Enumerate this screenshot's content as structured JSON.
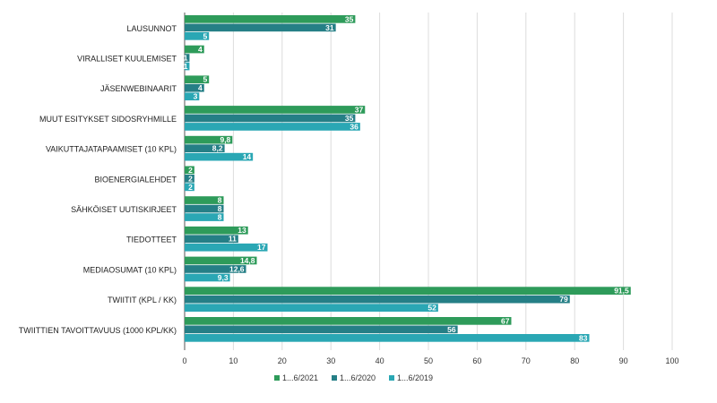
{
  "chart_data": {
    "type": "bar",
    "orientation": "horizontal",
    "title": "",
    "xlabel": "",
    "ylabel": "",
    "xlim": [
      0,
      100
    ],
    "xticks": [
      0,
      10,
      20,
      30,
      40,
      50,
      60,
      70,
      80,
      90,
      100
    ],
    "grid": true,
    "legend_position": "bottom",
    "categories": [
      "LAUSUNNOT",
      "VIRALLISET KUULEMISET",
      "JÄSENWEBINAARIT",
      "MUUT ESITYKSET SIDOSRYHMILLE",
      "VAIKUTTAJATAPAAMISET (10 KPL)",
      "BIOENERGIALEHDET",
      "SÄHKÖISET UUTISKIRJEET",
      "TIEDOTTEET",
      "MEDIAOSUMAT (10 KPL)",
      "TWIITIT (KPL / KK)",
      "TWIITTIEN TAVOITTAVUUS (1000 KPL/KK)"
    ],
    "series": [
      {
        "name": "1...6/2021",
        "color": "#2e9b5a",
        "values": [
          35,
          4,
          5,
          37,
          9.8,
          2,
          8,
          13,
          14.8,
          91.5,
          67
        ],
        "labels": [
          "35",
          "4",
          "5",
          "37",
          "9,8",
          "2",
          "8",
          "13",
          "14,8",
          "91,5",
          "67"
        ]
      },
      {
        "name": "1...6/2020",
        "color": "#257f86",
        "values": [
          31,
          1,
          4,
          35,
          8.2,
          2,
          8,
          11,
          12.6,
          79,
          56
        ],
        "labels": [
          "31",
          "1",
          "4",
          "35",
          "8,2",
          "2",
          "8",
          "11",
          "12,6",
          "79",
          "56"
        ]
      },
      {
        "name": "1...6/2019",
        "color": "#2aa7b4",
        "values": [
          5,
          1,
          3,
          36,
          14,
          2,
          8,
          17,
          9.3,
          52,
          83
        ],
        "labels": [
          "5",
          "1",
          "3",
          "36",
          "14",
          "2",
          "8",
          "17",
          "9,3",
          "52",
          "83"
        ]
      }
    ]
  }
}
